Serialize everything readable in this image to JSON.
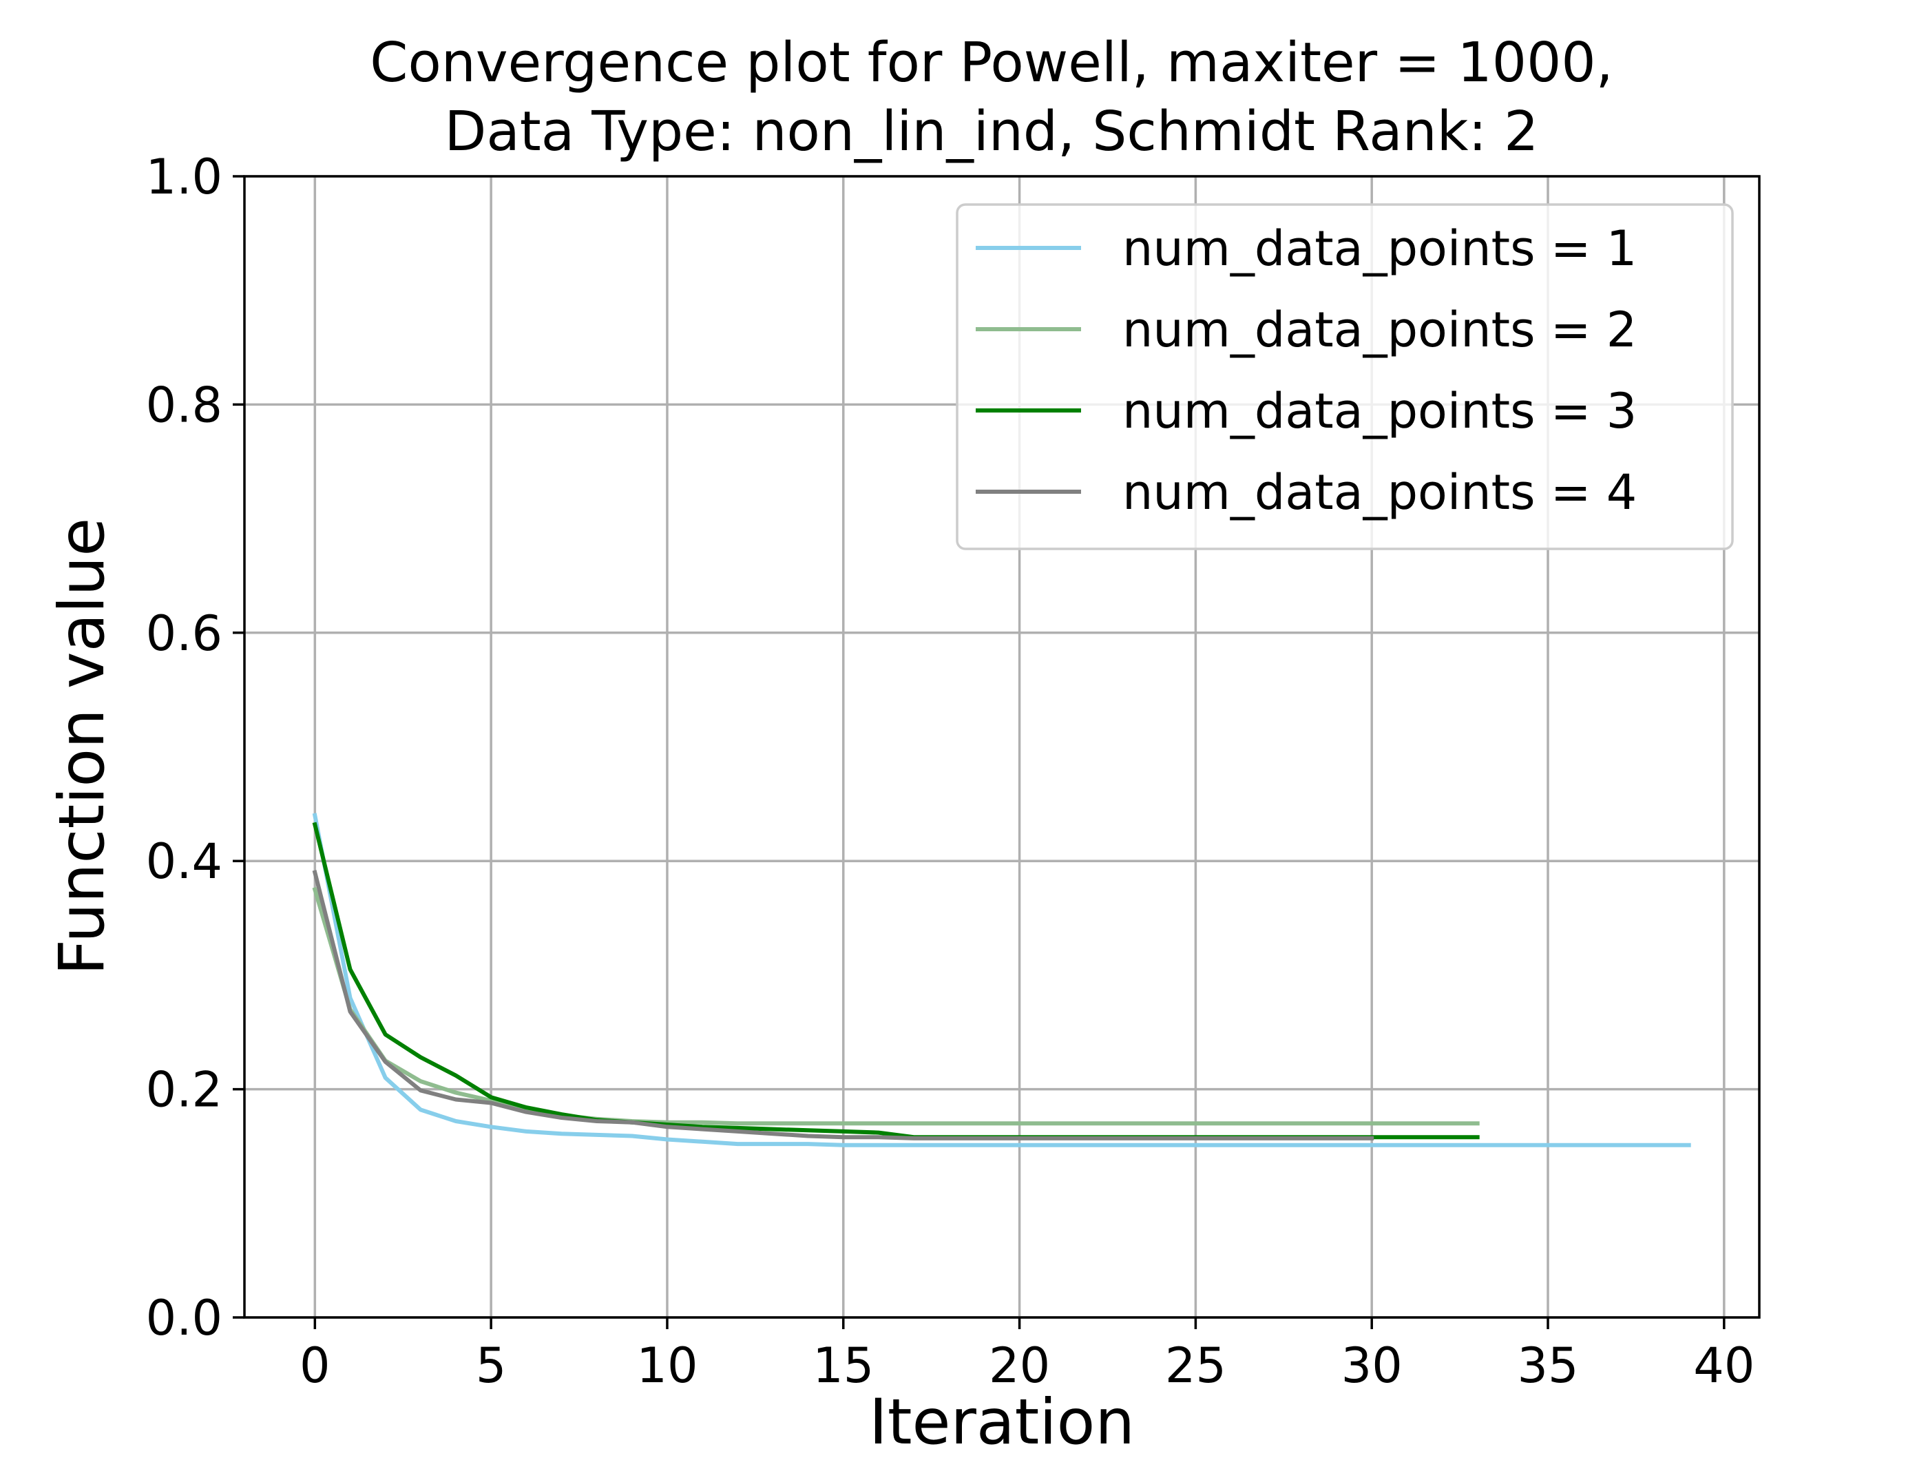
{
  "chart_data": {
    "type": "line",
    "title_line1": "Convergence plot for Powell, maxiter = 1000,",
    "title_line2": "Data Type: non_lin_ind, Schmidt Rank: 2",
    "xlabel": "Iteration",
    "ylabel": "Function value",
    "xlim": [
      -2,
      41
    ],
    "ylim": [
      0,
      1
    ],
    "xticks": [
      0,
      5,
      10,
      15,
      20,
      25,
      30,
      35,
      40
    ],
    "yticks": [
      0.0,
      0.2,
      0.4,
      0.6,
      0.8,
      1.0
    ],
    "xtick_labels": [
      "0",
      "5",
      "10",
      "15",
      "20",
      "25",
      "30",
      "35",
      "40"
    ],
    "ytick_labels": [
      "0.0",
      "0.2",
      "0.4",
      "0.6",
      "0.8",
      "1.0"
    ],
    "grid": true,
    "legend_position": "top-right",
    "series": [
      {
        "name": "num_data_points = 1",
        "color": "#87ceeb",
        "x": [
          0,
          1,
          2,
          3,
          4,
          5,
          6,
          7,
          8,
          9,
          10,
          11,
          12,
          13,
          14,
          15,
          16,
          17,
          18,
          19,
          20,
          21,
          22,
          23,
          24,
          25,
          26,
          27,
          28,
          29,
          30,
          31,
          32,
          33,
          34,
          35,
          36,
          37,
          38,
          39
        ],
        "y": [
          0.44,
          0.28,
          0.21,
          0.182,
          0.172,
          0.167,
          0.163,
          0.161,
          0.16,
          0.159,
          0.156,
          0.154,
          0.152,
          0.152,
          0.152,
          0.151,
          0.151,
          0.151,
          0.151,
          0.151,
          0.151,
          0.151,
          0.151,
          0.151,
          0.151,
          0.151,
          0.151,
          0.151,
          0.151,
          0.151,
          0.151,
          0.151,
          0.151,
          0.151,
          0.151,
          0.151,
          0.151,
          0.151,
          0.151,
          0.151
        ]
      },
      {
        "name": "num_data_points = 2",
        "color": "#8fbc8f",
        "x": [
          0,
          1,
          2,
          3,
          4,
          5,
          6,
          7,
          8,
          9,
          10,
          11,
          12,
          13,
          14,
          15,
          16,
          17,
          18,
          19,
          20,
          21,
          22,
          23,
          24,
          25,
          26,
          27,
          28,
          29,
          30,
          31,
          32,
          33
        ],
        "y": [
          0.375,
          0.27,
          0.225,
          0.207,
          0.197,
          0.19,
          0.182,
          0.177,
          0.174,
          0.172,
          0.171,
          0.171,
          0.17,
          0.17,
          0.17,
          0.17,
          0.17,
          0.17,
          0.17,
          0.17,
          0.17,
          0.17,
          0.17,
          0.17,
          0.17,
          0.17,
          0.17,
          0.17,
          0.17,
          0.17,
          0.17,
          0.17,
          0.17,
          0.17
        ]
      },
      {
        "name": "num_data_points = 3",
        "color": "#008000",
        "x": [
          0,
          1,
          2,
          3,
          4,
          5,
          6,
          7,
          8,
          9,
          10,
          11,
          12,
          13,
          14,
          15,
          16,
          17,
          18,
          19,
          20,
          21,
          22,
          23,
          24,
          25,
          26,
          27,
          28,
          29,
          30,
          31,
          32,
          33
        ],
        "y": [
          0.432,
          0.305,
          0.248,
          0.228,
          0.212,
          0.193,
          0.184,
          0.178,
          0.173,
          0.171,
          0.169,
          0.167,
          0.166,
          0.165,
          0.164,
          0.163,
          0.162,
          0.158,
          0.158,
          0.158,
          0.158,
          0.158,
          0.158,
          0.158,
          0.158,
          0.158,
          0.158,
          0.158,
          0.158,
          0.158,
          0.158,
          0.158,
          0.158,
          0.158
        ]
      },
      {
        "name": "num_data_points = 4",
        "color": "#808080",
        "x": [
          0,
          1,
          2,
          3,
          4,
          5,
          6,
          7,
          8,
          9,
          10,
          11,
          12,
          13,
          14,
          15,
          16,
          17,
          18,
          19,
          20,
          21,
          22,
          23,
          24,
          25,
          26,
          27,
          28,
          29,
          30
        ],
        "y": [
          0.39,
          0.268,
          0.224,
          0.199,
          0.191,
          0.188,
          0.18,
          0.175,
          0.172,
          0.171,
          0.167,
          0.165,
          0.163,
          0.161,
          0.159,
          0.158,
          0.158,
          0.157,
          0.157,
          0.157,
          0.157,
          0.157,
          0.157,
          0.157,
          0.157,
          0.157,
          0.157,
          0.157,
          0.157,
          0.157,
          0.157
        ]
      }
    ]
  }
}
